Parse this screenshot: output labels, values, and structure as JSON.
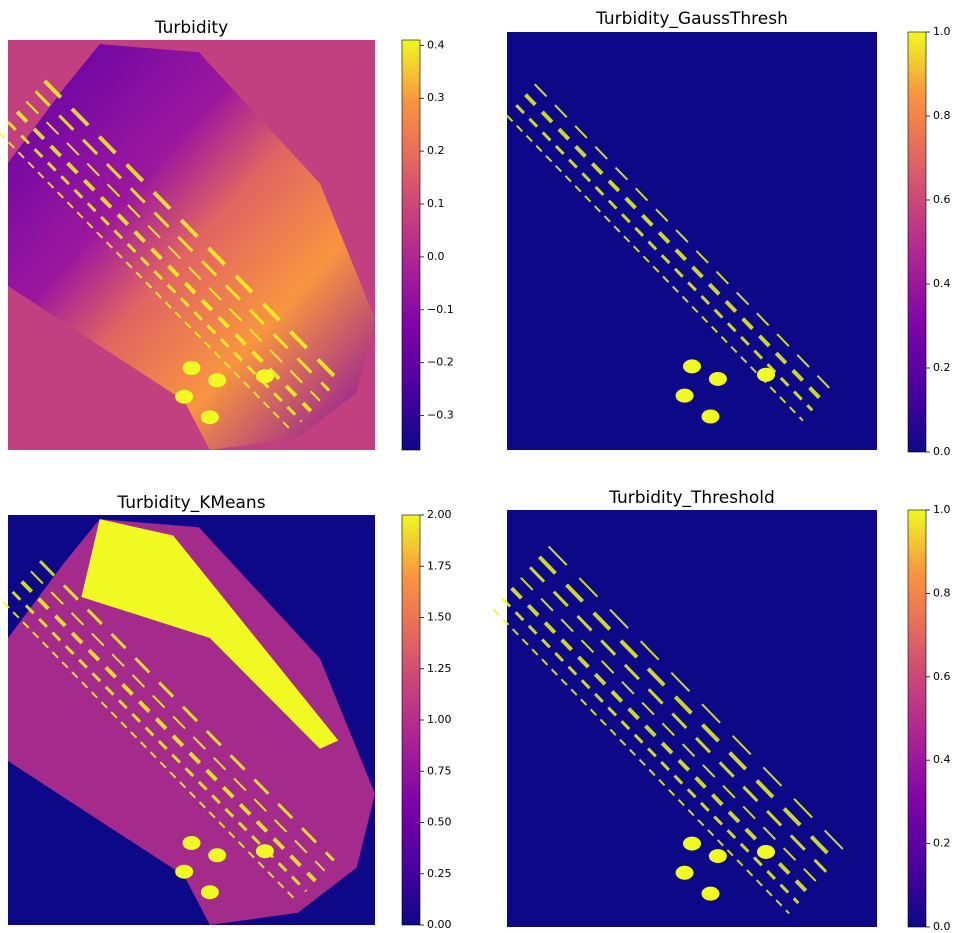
{
  "chart_data": [
    {
      "type": "image",
      "title": "Turbidity",
      "colormap": "plasma",
      "background": "#c23f80",
      "clim": [
        -0.365,
        0.41
      ],
      "cticks": [
        0.4,
        0.3,
        0.2,
        0.1,
        {
          "value": 0,
          "label": "0.0"
        },
        {
          "value": -0.1,
          "label": "−0.1"
        },
        {
          "value": -0.2,
          "label": "−0.2"
        },
        {
          "value": -0.3,
          "label": "−0.3"
        }
      ]
    },
    {
      "type": "image",
      "title": "Turbidity_GaussThresh",
      "colormap": "plasma",
      "background": "#0d0887",
      "clim": [
        0,
        1
      ],
      "cticks": [
        {
          "value": 1,
          "label": "1.0"
        },
        0.8,
        0.6,
        0.4,
        0.2,
        {
          "value": 0,
          "label": "0.0"
        }
      ]
    },
    {
      "type": "image",
      "title": "Turbidity_KMeans",
      "colormap": "plasma",
      "background": "#0d0887",
      "clim": [
        0,
        2
      ],
      "cticks": [
        {
          "value": 2,
          "label": "2.00"
        },
        1.75,
        {
          "value": 1.5,
          "label": "1.50"
        },
        1.25,
        {
          "value": 1,
          "label": "1.00"
        },
        0.75,
        {
          "value": 0.5,
          "label": "0.50"
        },
        0.25,
        {
          "value": 0,
          "label": "0.00"
        }
      ]
    },
    {
      "type": "image",
      "title": "Turbidity_Threshold",
      "colormap": "plasma",
      "background": "#0d0887",
      "clim": [
        0,
        1
      ],
      "cticks": [
        {
          "value": 1,
          "label": "1.0"
        },
        0.8,
        0.6,
        0.4,
        0.2,
        {
          "value": 0,
          "label": "0.0"
        }
      ]
    }
  ]
}
